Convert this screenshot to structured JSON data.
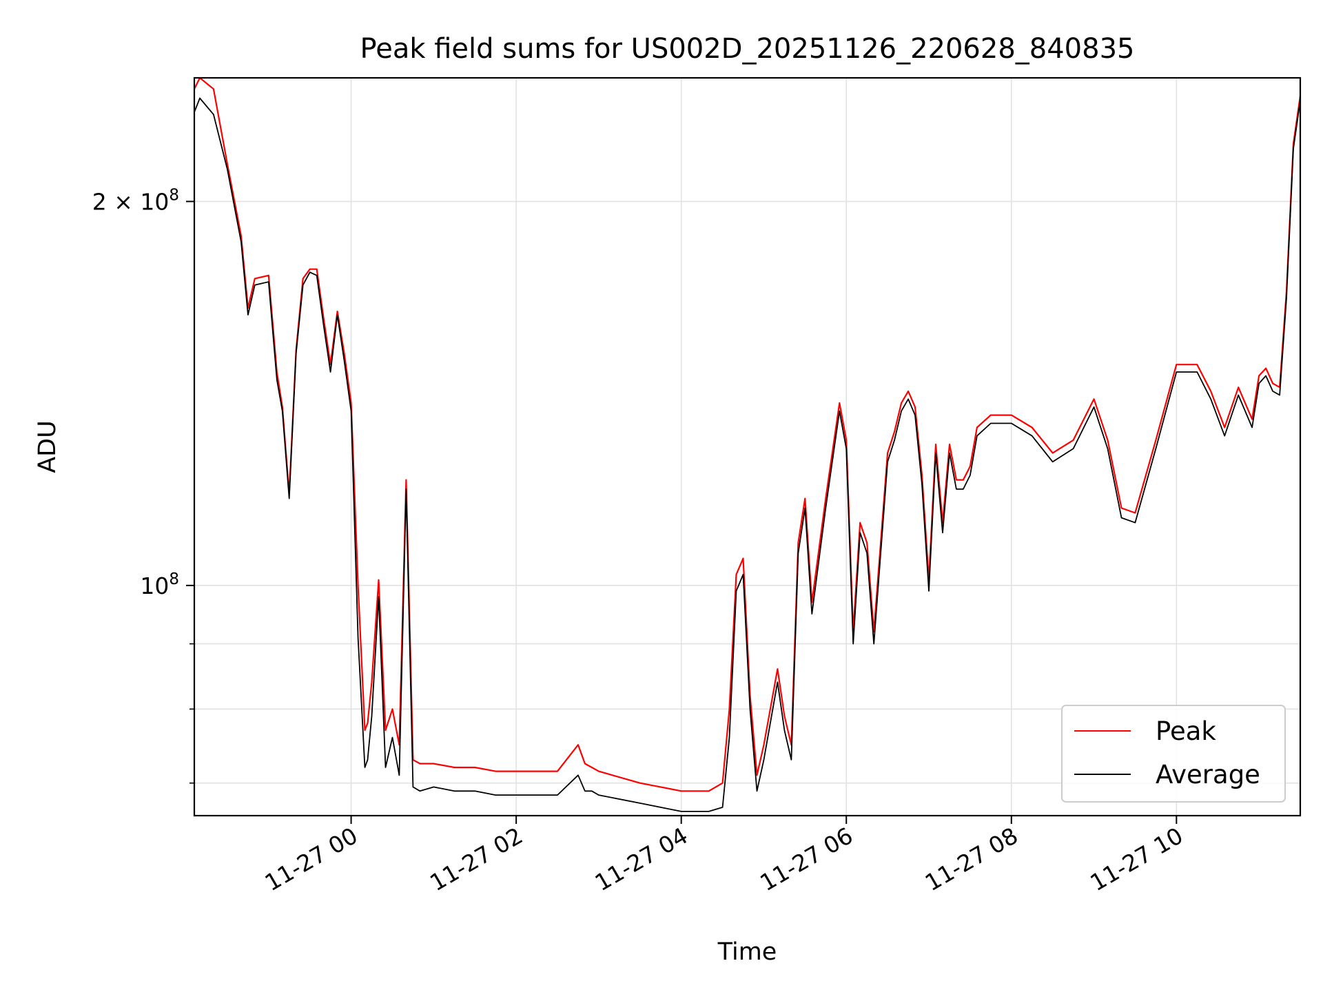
{
  "chart_data": {
    "type": "line",
    "title": "Peak field sums for US002D_20251126_220628_840835",
    "xlabel": "Time",
    "ylabel": "ADU",
    "yscale": "log",
    "xlim": [
      "2025-11-26 22:06",
      "2025-11-27 11:30"
    ],
    "ylim": [
      66000000,
      250000000
    ],
    "grid": true,
    "legend_position": "lower-right",
    "x_ticks": [
      {
        "value": "2025-11-27 00:00",
        "label": "11-27 00"
      },
      {
        "value": "2025-11-27 02:00",
        "label": "11-27 02"
      },
      {
        "value": "2025-11-27 04:00",
        "label": "11-27 04"
      },
      {
        "value": "2025-11-27 06:00",
        "label": "11-27 06"
      },
      {
        "value": "2025-11-27 08:00",
        "label": "11-27 08"
      },
      {
        "value": "2025-11-27 10:00",
        "label": "11-27 10"
      }
    ],
    "y_major_ticks": [
      {
        "value": 100000000,
        "label_base": "10",
        "label_exp": "8",
        "label_mantissa": ""
      },
      {
        "value": 200000000,
        "label_base": "10",
        "label_exp": "8",
        "label_mantissa": "2 × "
      }
    ],
    "y_minor_ticks": [
      70000000,
      80000000,
      90000000
    ],
    "series": [
      {
        "name": "Average",
        "color": "#000000",
        "x": [
          "2025-11-26 22:06",
          "2025-11-26 22:10",
          "2025-11-26 22:20",
          "2025-11-26 22:30",
          "2025-11-26 22:40",
          "2025-11-26 22:45",
          "2025-11-26 22:50",
          "2025-11-26 23:00",
          "2025-11-26 23:06",
          "2025-11-26 23:10",
          "2025-11-26 23:15",
          "2025-11-26 23:20",
          "2025-11-26 23:25",
          "2025-11-26 23:30",
          "2025-11-26 23:35",
          "2025-11-26 23:40",
          "2025-11-26 23:45",
          "2025-11-26 23:50",
          "2025-11-26 23:55",
          "2025-11-27 00:00",
          "2025-11-27 00:05",
          "2025-11-27 00:10",
          "2025-11-27 00:12",
          "2025-11-27 00:15",
          "2025-11-27 00:20",
          "2025-11-27 00:25",
          "2025-11-27 00:30",
          "2025-11-27 00:35",
          "2025-11-27 00:40",
          "2025-11-27 00:45",
          "2025-11-27 00:50",
          "2025-11-27 01:00",
          "2025-11-27 01:15",
          "2025-11-27 01:30",
          "2025-11-27 01:45",
          "2025-11-27 02:00",
          "2025-11-27 02:30",
          "2025-11-27 02:45",
          "2025-11-27 02:50",
          "2025-11-27 02:55",
          "2025-11-27 03:00",
          "2025-11-27 03:30",
          "2025-11-27 03:45",
          "2025-11-27 04:00",
          "2025-11-27 04:20",
          "2025-11-27 04:30",
          "2025-11-27 04:35",
          "2025-11-27 04:40",
          "2025-11-27 04:45",
          "2025-11-27 04:50",
          "2025-11-27 04:55",
          "2025-11-27 05:00",
          "2025-11-27 05:10",
          "2025-11-27 05:15",
          "2025-11-27 05:20",
          "2025-11-27 05:25",
          "2025-11-27 05:30",
          "2025-11-27 05:35",
          "2025-11-27 05:45",
          "2025-11-27 05:55",
          "2025-11-27 06:00",
          "2025-11-27 06:05",
          "2025-11-27 06:10",
          "2025-11-27 06:15",
          "2025-11-27 06:20",
          "2025-11-27 06:25",
          "2025-11-27 06:30",
          "2025-11-27 06:35",
          "2025-11-27 06:40",
          "2025-11-27 06:45",
          "2025-11-27 06:50",
          "2025-11-27 06:55",
          "2025-11-27 07:00",
          "2025-11-27 07:05",
          "2025-11-27 07:10",
          "2025-11-27 07:15",
          "2025-11-27 07:20",
          "2025-11-27 07:25",
          "2025-11-27 07:30",
          "2025-11-27 07:35",
          "2025-11-27 07:45",
          "2025-11-27 08:00",
          "2025-11-27 08:15",
          "2025-11-27 08:30",
          "2025-11-27 08:45",
          "2025-11-27 09:00",
          "2025-11-27 09:10",
          "2025-11-27 09:20",
          "2025-11-27 09:30",
          "2025-11-27 09:45",
          "2025-11-27 10:00",
          "2025-11-27 10:15",
          "2025-11-27 10:25",
          "2025-11-27 10:35",
          "2025-11-27 10:45",
          "2025-11-27 10:55",
          "2025-11-27 11:00",
          "2025-11-27 11:05",
          "2025-11-27 11:10",
          "2025-11-27 11:15",
          "2025-11-27 11:20",
          "2025-11-27 11:25",
          "2025-11-27 11:30"
        ],
        "values": [
          235000000,
          241000000,
          234000000,
          212000000,
          186000000,
          163000000,
          172000000,
          173000000,
          145000000,
          137000000,
          117000000,
          152000000,
          172000000,
          176000000,
          175000000,
          160000000,
          147000000,
          163000000,
          150000000,
          137000000,
          91000000,
          72000000,
          73000000,
          79000000,
          98000000,
          72000000,
          76000000,
          71000000,
          119000000,
          69500000,
          69000000,
          69500000,
          69000000,
          69000000,
          68500000,
          68500000,
          68500000,
          71000000,
          69000000,
          69000000,
          68500000,
          67500000,
          67000000,
          66500000,
          66500000,
          67000000,
          76000000,
          99000000,
          102000000,
          80000000,
          69000000,
          73000000,
          84000000,
          77000000,
          73000000,
          106000000,
          115000000,
          95000000,
          115000000,
          137000000,
          128000000,
          90000000,
          110000000,
          106000000,
          90000000,
          106000000,
          125000000,
          130000000,
          137000000,
          140000000,
          136000000,
          120000000,
          99000000,
          127000000,
          110000000,
          127000000,
          119000000,
          119000000,
          122000000,
          131000000,
          134000000,
          134000000,
          131000000,
          125000000,
          128000000,
          138000000,
          128000000,
          113000000,
          112000000,
          128000000,
          147000000,
          147000000,
          140000000,
          131000000,
          141000000,
          133000000,
          144000000,
          146000000,
          142000000,
          141000000,
          168000000,
          220000000,
          240000000
        ]
      },
      {
        "name": "Peak",
        "color": "#ff0000",
        "x": [
          "2025-11-26 22:06",
          "2025-11-26 22:10",
          "2025-11-26 22:20",
          "2025-11-26 22:30",
          "2025-11-26 22:40",
          "2025-11-26 22:45",
          "2025-11-26 22:50",
          "2025-11-26 23:00",
          "2025-11-26 23:06",
          "2025-11-26 23:10",
          "2025-11-26 23:15",
          "2025-11-26 23:20",
          "2025-11-26 23:25",
          "2025-11-26 23:30",
          "2025-11-26 23:35",
          "2025-11-26 23:40",
          "2025-11-26 23:45",
          "2025-11-26 23:50",
          "2025-11-26 23:55",
          "2025-11-27 00:00",
          "2025-11-27 00:05",
          "2025-11-27 00:10",
          "2025-11-27 00:12",
          "2025-11-27 00:15",
          "2025-11-27 00:20",
          "2025-11-27 00:25",
          "2025-11-27 00:30",
          "2025-11-27 00:35",
          "2025-11-27 00:40",
          "2025-11-27 00:45",
          "2025-11-27 00:50",
          "2025-11-27 01:00",
          "2025-11-27 01:15",
          "2025-11-27 01:30",
          "2025-11-27 01:45",
          "2025-11-27 02:00",
          "2025-11-27 02:30",
          "2025-11-27 02:45",
          "2025-11-27 02:50",
          "2025-11-27 02:55",
          "2025-11-27 03:00",
          "2025-11-27 03:30",
          "2025-11-27 03:45",
          "2025-11-27 04:00",
          "2025-11-27 04:20",
          "2025-11-27 04:30",
          "2025-11-27 04:35",
          "2025-11-27 04:40",
          "2025-11-27 04:45",
          "2025-11-27 04:50",
          "2025-11-27 04:55",
          "2025-11-27 05:00",
          "2025-11-27 05:10",
          "2025-11-27 05:15",
          "2025-11-27 05:20",
          "2025-11-27 05:25",
          "2025-11-27 05:30",
          "2025-11-27 05:35",
          "2025-11-27 05:45",
          "2025-11-27 05:55",
          "2025-11-27 06:00",
          "2025-11-27 06:05",
          "2025-11-27 06:10",
          "2025-11-27 06:15",
          "2025-11-27 06:20",
          "2025-11-27 06:25",
          "2025-11-27 06:30",
          "2025-11-27 06:35",
          "2025-11-27 06:40",
          "2025-11-27 06:45",
          "2025-11-27 06:50",
          "2025-11-27 06:55",
          "2025-11-27 07:00",
          "2025-11-27 07:05",
          "2025-11-27 07:10",
          "2025-11-27 07:15",
          "2025-11-27 07:20",
          "2025-11-27 07:25",
          "2025-11-27 07:30",
          "2025-11-27 07:35",
          "2025-11-27 07:45",
          "2025-11-27 08:00",
          "2025-11-27 08:15",
          "2025-11-27 08:30",
          "2025-11-27 08:45",
          "2025-11-27 09:00",
          "2025-11-27 09:10",
          "2025-11-27 09:20",
          "2025-11-27 09:30",
          "2025-11-27 09:45",
          "2025-11-27 10:00",
          "2025-11-27 10:15",
          "2025-11-27 10:25",
          "2025-11-27 10:35",
          "2025-11-27 10:45",
          "2025-11-27 10:55",
          "2025-11-27 11:00",
          "2025-11-27 11:05",
          "2025-11-27 11:10",
          "2025-11-27 11:15",
          "2025-11-27 11:20",
          "2025-11-27 11:25",
          "2025-11-27 11:30"
        ],
        "values": [
          245000000,
          250000000,
          245000000,
          214000000,
          188000000,
          165000000,
          174000000,
          175000000,
          147000000,
          138000000,
          118000000,
          153000000,
          174000000,
          177000000,
          177000000,
          162000000,
          149000000,
          164000000,
          152000000,
          139000000,
          100000000,
          77000000,
          78000000,
          84000000,
          101000000,
          77000000,
          80000000,
          75000000,
          121000000,
          73000000,
          72500000,
          72500000,
          72000000,
          72000000,
          71500000,
          71500000,
          71500000,
          75000000,
          72500000,
          72000000,
          71500000,
          70000000,
          69500000,
          69000000,
          69000000,
          70000000,
          80000000,
          102000000,
          105000000,
          82000000,
          71000000,
          75000000,
          86000000,
          79000000,
          75000000,
          108000000,
          117000000,
          97000000,
          117000000,
          139000000,
          130000000,
          92000000,
          112000000,
          108000000,
          92000000,
          108000000,
          127000000,
          132000000,
          139000000,
          142000000,
          138000000,
          122000000,
          101000000,
          129000000,
          112000000,
          129000000,
          121000000,
          121000000,
          124000000,
          133000000,
          136000000,
          136000000,
          133000000,
          127000000,
          130000000,
          140000000,
          130000000,
          115000000,
          114000000,
          130000000,
          149000000,
          149000000,
          142000000,
          133000000,
          143000000,
          135000000,
          146000000,
          148000000,
          144000000,
          143000000,
          170000000,
          222000000,
          242000000
        ]
      }
    ],
    "legend": [
      {
        "label": "Peak",
        "color": "#ff0000"
      },
      {
        "label": "Average",
        "color": "#000000"
      }
    ]
  }
}
